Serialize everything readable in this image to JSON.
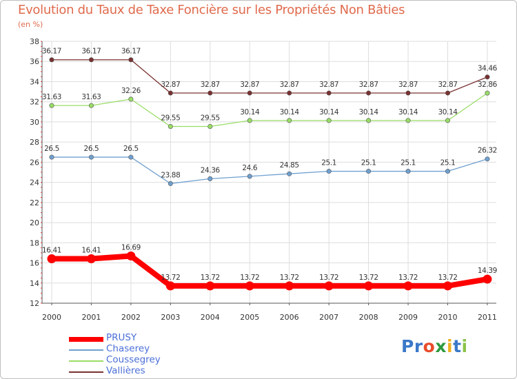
{
  "chart_data": {
    "type": "line",
    "title": "Evolution du Taux de Taxe Foncière sur les Propriétés Non Bâties",
    "subtitle": "(en %)",
    "xlabel": "",
    "ylabel": "",
    "ylim": [
      12,
      38
    ],
    "y_ticks": [
      "12",
      "14",
      "16",
      "18",
      "20",
      "22",
      "24",
      "26",
      "28",
      "30",
      "32",
      "34",
      "36",
      "38"
    ],
    "y_tick_values": [
      12,
      14,
      16,
      18,
      20,
      22,
      24,
      26,
      28,
      30,
      32,
      34,
      36,
      38
    ],
    "categories": [
      "2000",
      "2001",
      "2002",
      "2003",
      "2004",
      "2005",
      "2006",
      "2007",
      "2008",
      "2009",
      "2010",
      "2011"
    ],
    "grid": true,
    "series": [
      {
        "name": "PRUSY",
        "color": "#ff0000",
        "values": [
          16.41,
          16.41,
          16.69,
          13.72,
          13.72,
          13.72,
          13.72,
          13.72,
          13.72,
          13.72,
          13.72,
          14.39
        ],
        "labels": [
          "16.41",
          "16.41",
          "16.69",
          "13.72",
          "13.72",
          "13.72",
          "13.72",
          "13.72",
          "13.72",
          "13.72",
          "13.72",
          "14.39"
        ]
      },
      {
        "name": "Chaserey",
        "color": "#6fa0d0",
        "values": [
          26.5,
          26.5,
          26.5,
          23.88,
          24.36,
          24.6,
          24.85,
          25.1,
          25.1,
          25.1,
          25.1,
          26.32
        ],
        "labels": [
          "26.5",
          "26.5",
          "26.5",
          "23.88",
          "24.36",
          "24.6",
          "24.85",
          "25.1",
          "25.1",
          "25.1",
          "25.1",
          "26.32"
        ]
      },
      {
        "name": "Coussegrey",
        "color": "#99dd66",
        "values": [
          31.63,
          31.63,
          32.26,
          29.55,
          29.55,
          30.14,
          30.14,
          30.14,
          30.14,
          30.14,
          30.14,
          32.86
        ],
        "labels": [
          "31.63",
          "31.63",
          "32.26",
          "29.55",
          "29.55",
          "30.14",
          "30.14",
          "30.14",
          "30.14",
          "30.14",
          "30.14",
          "32.86"
        ]
      },
      {
        "name": "Vallières",
        "color": "#7a3030",
        "values": [
          36.17,
          36.17,
          36.17,
          32.87,
          32.87,
          32.87,
          32.87,
          32.87,
          32.87,
          32.87,
          32.87,
          34.46
        ],
        "labels": [
          "36.17",
          "36.17",
          "36.17",
          "32.87",
          "32.87",
          "32.87",
          "32.87",
          "32.87",
          "32.87",
          "32.87",
          "32.87",
          "34.46"
        ]
      }
    ],
    "legend_position": "bottom-left"
  },
  "logo": {
    "letters": [
      "P",
      "r",
      "o",
      "x",
      "i",
      "t",
      "i"
    ],
    "colors": [
      "#3a78c8",
      "#3a78c8",
      "#e84c2b",
      "#2e9a3e",
      "#f0b020",
      "#3a78c8",
      "#8bc34a"
    ]
  }
}
